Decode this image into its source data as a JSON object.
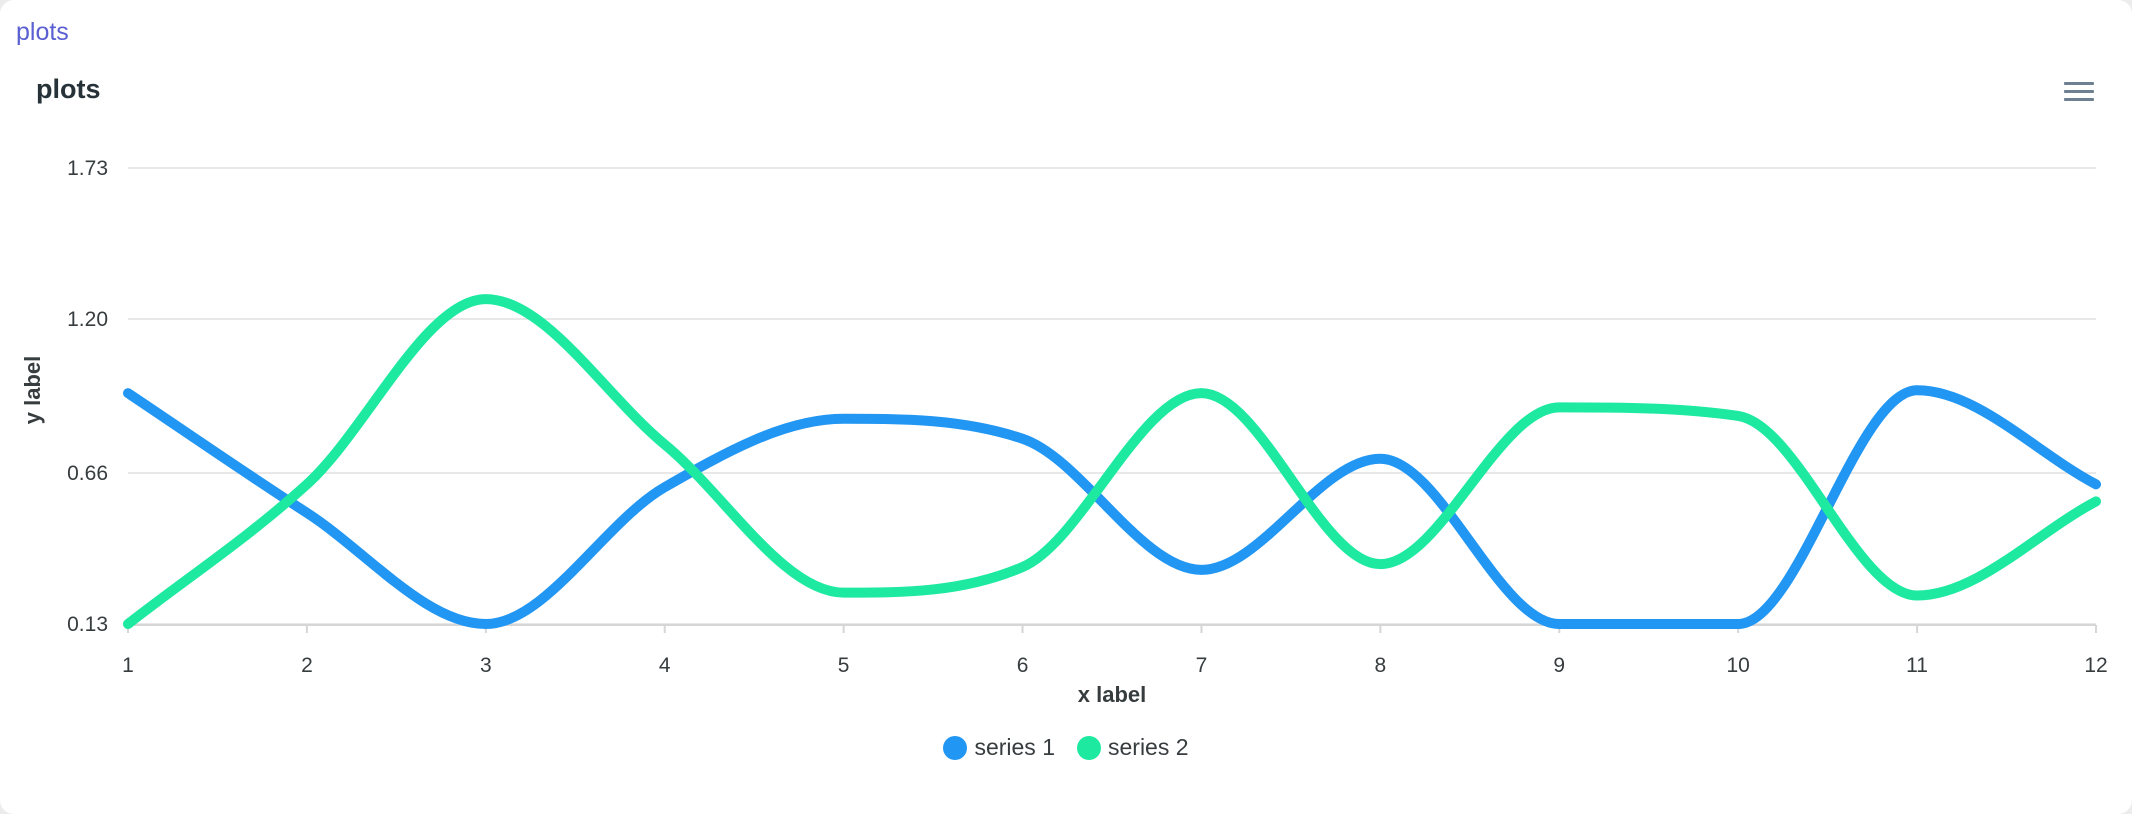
{
  "header": {
    "link_label": "plots"
  },
  "chart_data": {
    "type": "line",
    "title": "plots",
    "xlabel": "x label",
    "ylabel": "y label",
    "x": [
      1,
      2,
      3,
      4,
      5,
      6,
      7,
      8,
      9,
      10,
      11,
      12
    ],
    "x_tick_labels": [
      "1",
      "2",
      "3",
      "4",
      "5",
      "6",
      "7",
      "8",
      "9",
      "10",
      "11",
      "12"
    ],
    "y_tick_labels": [
      "1.73",
      "1.20",
      "0.66",
      "0.13"
    ],
    "y_ticks": [
      1.73,
      1.2,
      0.66,
      0.13
    ],
    "ylim": [
      0.13,
      1.73
    ],
    "xlim": [
      1,
      12
    ],
    "grid": true,
    "curve": "smooth",
    "legend_position": "bottom-center",
    "series": [
      {
        "name": "series 1",
        "color": "#2196f3",
        "values": [
          0.94,
          0.52,
          0.13,
          0.61,
          0.85,
          0.78,
          0.32,
          0.71,
          0.13,
          0.13,
          0.95,
          0.62
        ]
      },
      {
        "name": "series 2",
        "color": "#1de9a0",
        "values": [
          0.13,
          0.62,
          1.27,
          0.76,
          0.24,
          0.33,
          0.94,
          0.34,
          0.89,
          0.86,
          0.23,
          0.56
        ]
      }
    ]
  }
}
